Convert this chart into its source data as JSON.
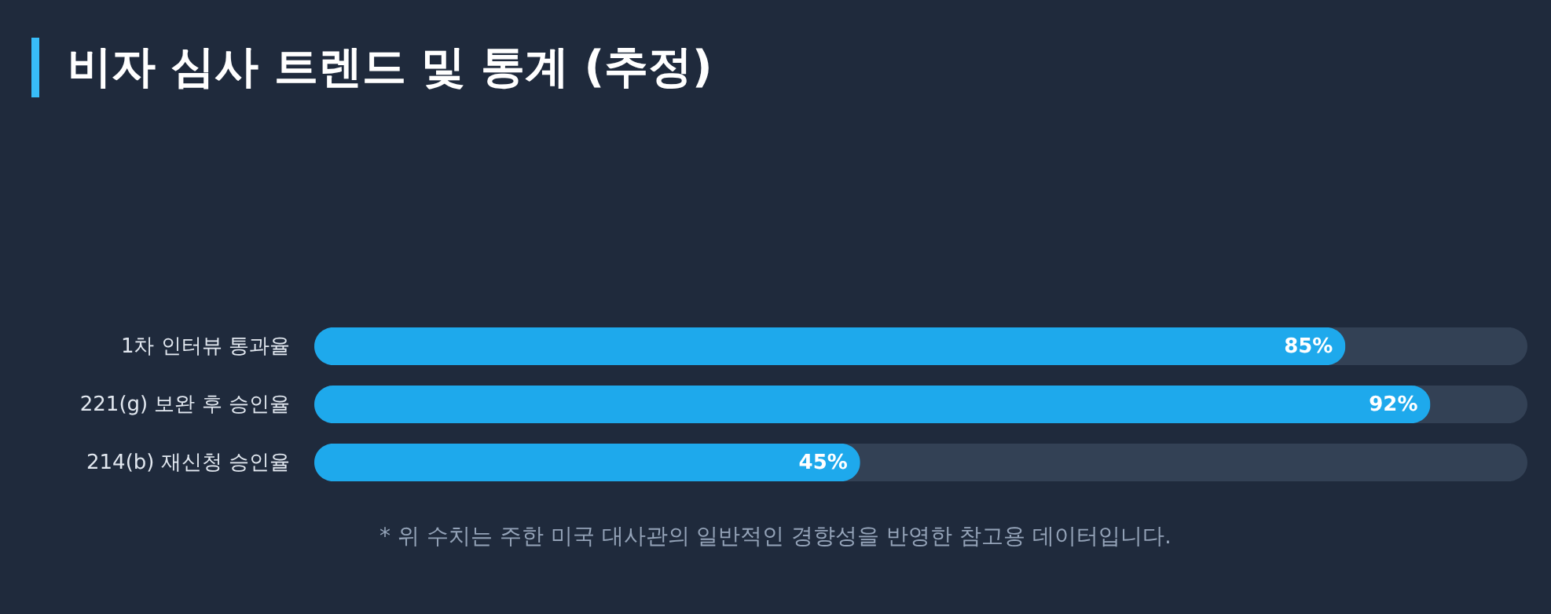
{
  "chart_data": {
    "type": "bar",
    "orientation": "horizontal",
    "title": "비자 심사 트렌드 및 통계 (추정)",
    "categories": [
      "1차 인터뷰 통과율",
      "221(g) 보완 후 승인율",
      "214(b) 재신청 승인율"
    ],
    "values": [
      85,
      92,
      45
    ],
    "value_labels": [
      "85%",
      "92%",
      "45%"
    ],
    "color": "#1ea9ec",
    "xlim": [
      0,
      100
    ],
    "tick_labels": "y",
    "annotations": [
      "* 위 수치는 주한 미국 대사관의 일반적인 경향성을 반영한 참고용 데이터입니다."
    ]
  }
}
